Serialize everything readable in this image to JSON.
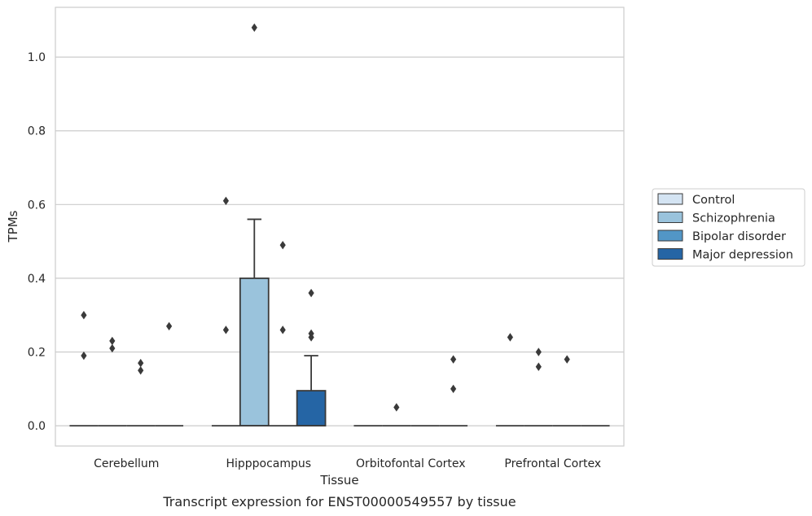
{
  "chart_data": {
    "type": "box",
    "xlabel": "Tissue",
    "ylabel": "TPMs",
    "caption": "Transcript expression for ENST00000549557 by tissue",
    "ylim": [
      -0.055,
      1.135
    ],
    "yticks": [
      "0.0",
      "0.2",
      "0.4",
      "0.6",
      "0.8",
      "1.0"
    ],
    "ytick_values": [
      0.0,
      0.2,
      0.4,
      0.6,
      0.8,
      1.0
    ],
    "grid": "horizontal",
    "legend_position": "right",
    "categories": [
      "Cerebellum",
      "Hipppocampus",
      "Orbitofontal Cortex",
      "Prefrontal Cortex"
    ],
    "series": [
      {
        "name": "Control",
        "color": "#d4e4f3",
        "boxes": [
          {
            "q1": 0,
            "median": 0,
            "q3": 0,
            "whisker_low": 0,
            "whisker_high": 0,
            "outliers": [
              0.3,
              0.19
            ]
          },
          {
            "q1": 0,
            "median": 0,
            "q3": 0,
            "whisker_low": 0,
            "whisker_high": 0,
            "outliers": [
              0.61,
              0.26
            ]
          },
          {
            "q1": 0,
            "median": 0,
            "q3": 0,
            "whisker_low": 0,
            "whisker_high": 0,
            "outliers": []
          },
          {
            "q1": 0,
            "median": 0,
            "q3": 0,
            "whisker_low": 0,
            "whisker_high": 0,
            "outliers": [
              0.24
            ]
          }
        ]
      },
      {
        "name": "Schizophrenia",
        "color": "#9ac3dc",
        "boxes": [
          {
            "q1": 0,
            "median": 0,
            "q3": 0,
            "whisker_low": 0,
            "whisker_high": 0,
            "outliers": [
              0.23,
              0.21
            ]
          },
          {
            "q1": 0,
            "median": 0,
            "q3": 0.4,
            "whisker_low": 0,
            "whisker_high": 0.56,
            "outliers": [
              1.08
            ]
          },
          {
            "q1": 0,
            "median": 0,
            "q3": 0,
            "whisker_low": 0,
            "whisker_high": 0,
            "outliers": [
              0.05
            ]
          },
          {
            "q1": 0,
            "median": 0,
            "q3": 0,
            "whisker_low": 0,
            "whisker_high": 0,
            "outliers": [
              0.2,
              0.16
            ]
          }
        ]
      },
      {
        "name": "Bipolar disorder",
        "color": "#5296c6",
        "boxes": [
          {
            "q1": 0,
            "median": 0,
            "q3": 0,
            "whisker_low": 0,
            "whisker_high": 0,
            "outliers": [
              0.17,
              0.15
            ]
          },
          {
            "q1": 0,
            "median": 0,
            "q3": 0,
            "whisker_low": 0,
            "whisker_high": 0,
            "outliers": [
              0.49,
              0.26
            ]
          },
          {
            "q1": 0,
            "median": 0,
            "q3": 0,
            "whisker_low": 0,
            "whisker_high": 0,
            "outliers": []
          },
          {
            "q1": 0,
            "median": 0,
            "q3": 0,
            "whisker_low": 0,
            "whisker_high": 0,
            "outliers": [
              0.18
            ]
          }
        ]
      },
      {
        "name": "Major depression",
        "color": "#2565a5",
        "boxes": [
          {
            "q1": 0,
            "median": 0,
            "q3": 0,
            "whisker_low": 0,
            "whisker_high": 0,
            "outliers": [
              0.27
            ]
          },
          {
            "q1": 0,
            "median": 0,
            "q3": 0.095,
            "whisker_low": 0,
            "whisker_high": 0.19,
            "outliers": [
              0.36,
              0.25,
              0.24
            ]
          },
          {
            "q1": 0,
            "median": 0,
            "q3": 0,
            "whisker_low": 0,
            "whisker_high": 0,
            "outliers": [
              0.18,
              0.1
            ]
          },
          {
            "q1": 0,
            "median": 0,
            "q3": 0,
            "whisker_low": 0,
            "whisker_high": 0,
            "outliers": []
          }
        ]
      }
    ]
  }
}
